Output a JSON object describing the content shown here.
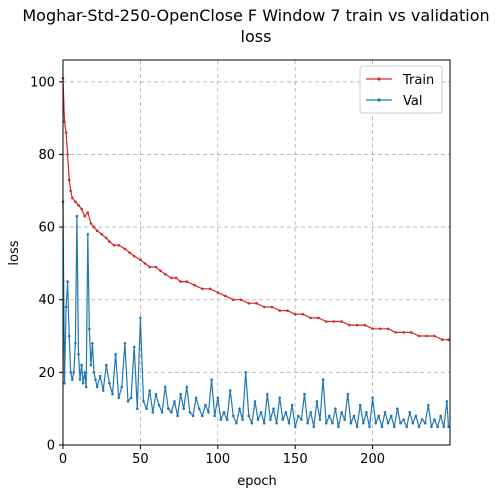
{
  "chart_data": {
    "type": "line",
    "title_line1": "Moghar-Std-250-OpenClose F Window 7 train vs validation",
    "title_line2": "loss",
    "xlabel": "epoch",
    "ylabel": "loss",
    "xlim": [
      0,
      250
    ],
    "ylim": [
      0,
      106
    ],
    "xticks": [
      0,
      50,
      100,
      150,
      200
    ],
    "yticks": [
      0,
      20,
      40,
      60,
      80,
      100
    ],
    "xtick_labels": [
      "0",
      "50",
      "100",
      "150",
      "200"
    ],
    "ytick_labels": [
      "0",
      "20",
      "40",
      "60",
      "80",
      "100"
    ],
    "grid": true,
    "legend_position": "top-right",
    "series": [
      {
        "name": "Train",
        "color": "#d62728",
        "x": [
          0,
          1,
          2,
          3,
          4,
          5,
          6,
          8,
          10,
          12,
          14,
          16,
          18,
          20,
          22,
          25,
          28,
          30,
          33,
          36,
          40,
          43,
          46,
          50,
          53,
          56,
          60,
          63,
          66,
          70,
          73,
          76,
          80,
          85,
          90,
          95,
          100,
          105,
          110,
          115,
          120,
          125,
          130,
          135,
          140,
          145,
          150,
          155,
          160,
          165,
          170,
          175,
          180,
          185,
          190,
          195,
          200,
          205,
          210,
          215,
          220,
          225,
          230,
          235,
          240,
          245,
          249
        ],
        "y": [
          101,
          89,
          86,
          80,
          73,
          70,
          68,
          67,
          66,
          65,
          63,
          64,
          61,
          60,
          59,
          58,
          57,
          56,
          55,
          55,
          54,
          53,
          52,
          51,
          50,
          49,
          49,
          48,
          47,
          46,
          46,
          45,
          45,
          44,
          43,
          43,
          42,
          41,
          40,
          40,
          39,
          39,
          38,
          38,
          37,
          37,
          36,
          36,
          35,
          35,
          34,
          34,
          34,
          33,
          33,
          33,
          32,
          32,
          32,
          31,
          31,
          31,
          30,
          30,
          30,
          29,
          29
        ]
      },
      {
        "name": "Val",
        "color": "#1f77b4",
        "x": [
          0,
          1,
          2,
          3,
          4,
          5,
          6,
          7,
          8,
          9,
          10,
          11,
          12,
          13,
          14,
          15,
          16,
          17,
          18,
          19,
          20,
          21,
          22,
          24,
          26,
          28,
          30,
          32,
          34,
          36,
          38,
          40,
          42,
          44,
          46,
          48,
          50,
          52,
          54,
          56,
          58,
          60,
          62,
          64,
          66,
          68,
          70,
          72,
          74,
          76,
          78,
          80,
          82,
          84,
          86,
          88,
          90,
          92,
          94,
          96,
          98,
          100,
          102,
          104,
          106,
          108,
          110,
          112,
          114,
          116,
          118,
          120,
          122,
          124,
          126,
          128,
          130,
          132,
          134,
          136,
          138,
          140,
          142,
          144,
          146,
          148,
          150,
          152,
          154,
          156,
          158,
          160,
          162,
          164,
          166,
          168,
          170,
          172,
          174,
          176,
          178,
          180,
          182,
          184,
          186,
          188,
          190,
          192,
          194,
          196,
          198,
          200,
          202,
          204,
          206,
          208,
          210,
          212,
          214,
          216,
          218,
          220,
          222,
          224,
          226,
          228,
          230,
          232,
          234,
          236,
          238,
          240,
          242,
          244,
          246,
          248,
          249
        ],
        "y": [
          67,
          17,
          38,
          45,
          30,
          20,
          18,
          20,
          28,
          63,
          25,
          18,
          22,
          17,
          20,
          16,
          58,
          32,
          22,
          28,
          20,
          18,
          16,
          19,
          15,
          22,
          17,
          14,
          25,
          13,
          16,
          28,
          12,
          13,
          27,
          10,
          35,
          12,
          10,
          15,
          9,
          14,
          11,
          9,
          16,
          10,
          9,
          12,
          8,
          14,
          10,
          16,
          9,
          8,
          13,
          10,
          8,
          11,
          9,
          18,
          8,
          13,
          7,
          9,
          7,
          15,
          8,
          6,
          10,
          7,
          20,
          8,
          6,
          12,
          7,
          9,
          6,
          14,
          7,
          10,
          6,
          13,
          7,
          9,
          6,
          11,
          5,
          8,
          7,
          14,
          6,
          9,
          5,
          12,
          7,
          18,
          6,
          8,
          6,
          10,
          5,
          9,
          7,
          14,
          6,
          8,
          5,
          11,
          6,
          9,
          5,
          13,
          6,
          8,
          5,
          9,
          6,
          8,
          5,
          10,
          6,
          7,
          5,
          9,
          6,
          8,
          5,
          7,
          6,
          11,
          5,
          7,
          5,
          8,
          5,
          12,
          5
        ]
      }
    ]
  }
}
